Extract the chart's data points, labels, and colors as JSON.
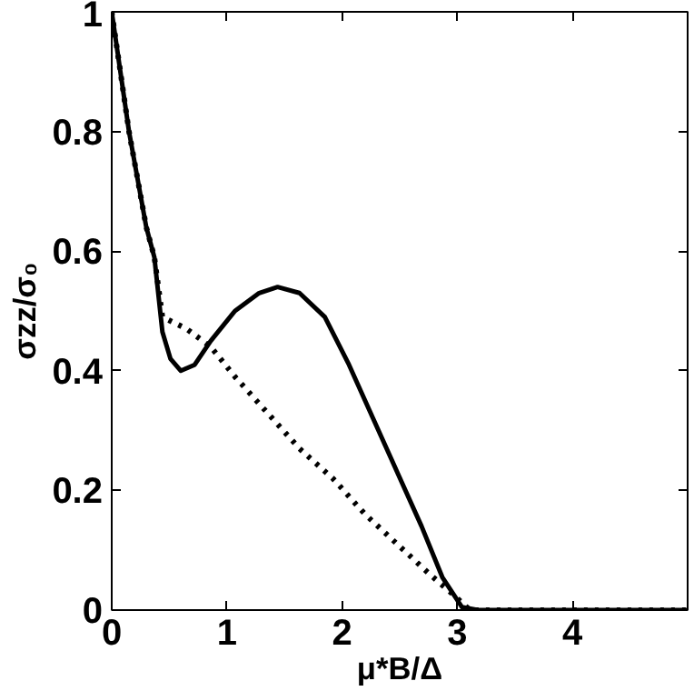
{
  "chart_data": {
    "type": "line",
    "xlabel": "μ*B/Δ",
    "ylabel": "σzz/σ₀",
    "xlim": [
      0,
      5
    ],
    "ylim": [
      0,
      1
    ],
    "xticks": [
      0,
      1,
      2,
      3,
      4
    ],
    "yticks": [
      0,
      0.2,
      0.4,
      0.6,
      0.8,
      1
    ],
    "grid": false,
    "marker": "none",
    "series": [
      {
        "color": "#000000",
        "line_style": "solid",
        "x": [
          0,
          0.15,
          0.3,
          0.37,
          0.44,
          0.51,
          0.6,
          0.72,
          0.86,
          1.07,
          1.28,
          1.44,
          1.63,
          1.85,
          2.06,
          2.27,
          2.48,
          2.69,
          2.87,
          3.04,
          3.18,
          5
        ],
        "values": [
          1,
          0.8,
          0.64,
          0.59,
          0.465,
          0.42,
          0.4,
          0.41,
          0.45,
          0.5,
          0.53,
          0.54,
          0.53,
          0.49,
          0.41,
          0.32,
          0.23,
          0.14,
          0.055,
          0.005,
          0,
          0
        ]
      },
      {
        "color": "#000000",
        "line_style": "dotted",
        "x": [
          0,
          0.15,
          0.3,
          0.37,
          0.44,
          0.65,
          0.86,
          1.07,
          1.35,
          1.63,
          1.92,
          2.2,
          2.48,
          2.76,
          2.97,
          3.11,
          5
        ],
        "values": [
          1,
          0.8,
          0.64,
          0.59,
          0.49,
          0.47,
          0.44,
          0.39,
          0.33,
          0.27,
          0.22,
          0.16,
          0.11,
          0.06,
          0.025,
          0,
          0
        ]
      }
    ]
  }
}
